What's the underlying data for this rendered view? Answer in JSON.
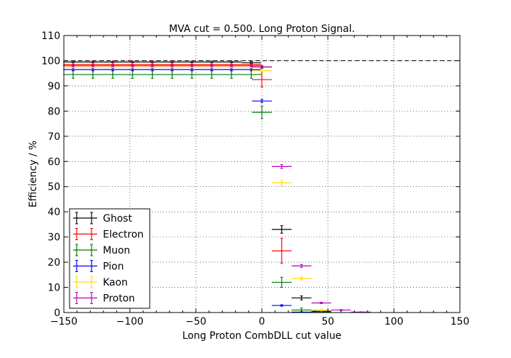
{
  "chart_data": {
    "type": "scatter",
    "title": "MVA cut = 0.500. Long Proton Signal.",
    "xlabel": "Long Proton CombDLL cut value",
    "ylabel": "Efficiency / %",
    "xlim": [
      -150,
      150
    ],
    "ylim": [
      0,
      110
    ],
    "xticks": [
      -150,
      -100,
      -50,
      0,
      50,
      100,
      150
    ],
    "yticks": [
      0,
      10,
      20,
      30,
      40,
      50,
      60,
      70,
      80,
      90,
      100,
      110
    ],
    "xtick_labels": [
      "−150",
      "−100",
      "−50",
      "0",
      "50",
      "100",
      "150"
    ],
    "ytick_labels": [
      "0",
      "10",
      "20",
      "30",
      "40",
      "50",
      "60",
      "70",
      "80",
      "90",
      "100",
      "110"
    ],
    "grid": true,
    "reference_line_y": 100,
    "legend_position": "lower-left",
    "series": [
      {
        "name": "Ghost",
        "color": "#000000",
        "points": [
          {
            "x": -143,
            "y": 99.5,
            "xerr": 7.5,
            "yerr": 0.3
          },
          {
            "x": -128,
            "y": 99.5,
            "xerr": 7.5,
            "yerr": 0.3
          },
          {
            "x": -113,
            "y": 99.5,
            "xerr": 7.5,
            "yerr": 0.3
          },
          {
            "x": -98,
            "y": 99.5,
            "xerr": 7.5,
            "yerr": 0.3
          },
          {
            "x": -83,
            "y": 99.5,
            "xerr": 7.5,
            "yerr": 0.3
          },
          {
            "x": -68,
            "y": 99.5,
            "xerr": 7.5,
            "yerr": 0.3
          },
          {
            "x": -53,
            "y": 99.5,
            "xerr": 7.5,
            "yerr": 0.3
          },
          {
            "x": -38,
            "y": 99.5,
            "xerr": 7.5,
            "yerr": 0.3
          },
          {
            "x": -23,
            "y": 99.5,
            "xerr": 7.5,
            "yerr": 0.3
          },
          {
            "x": -8,
            "y": 99.2,
            "xerr": 7.5,
            "yerr": 0.3
          },
          {
            "x": 0,
            "y": 97.5,
            "xerr": 7.5,
            "yerr": 0.5
          },
          {
            "x": 15,
            "y": 33.0,
            "xerr": 7.5,
            "yerr": 1.5
          },
          {
            "x": 30,
            "y": 5.8,
            "xerr": 7.5,
            "yerr": 0.8
          },
          {
            "x": 45,
            "y": 0.5,
            "xerr": 7.5,
            "yerr": 0.3
          },
          {
            "x": 75,
            "y": 0.1,
            "xerr": 7.5,
            "yerr": 0.1
          }
        ]
      },
      {
        "name": "Electron",
        "color": "#ff0000",
        "points": [
          {
            "x": -143,
            "y": 98.5,
            "xerr": 7.5,
            "yerr": 1.2
          },
          {
            "x": -128,
            "y": 98.5,
            "xerr": 7.5,
            "yerr": 1.2
          },
          {
            "x": -113,
            "y": 98.5,
            "xerr": 7.5,
            "yerr": 1.2
          },
          {
            "x": -98,
            "y": 98.5,
            "xerr": 7.5,
            "yerr": 1.2
          },
          {
            "x": -83,
            "y": 98.5,
            "xerr": 7.5,
            "yerr": 1.2
          },
          {
            "x": -68,
            "y": 98.5,
            "xerr": 7.5,
            "yerr": 1.2
          },
          {
            "x": -53,
            "y": 98.5,
            "xerr": 7.5,
            "yerr": 1.2
          },
          {
            "x": -38,
            "y": 98.5,
            "xerr": 7.5,
            "yerr": 1.2
          },
          {
            "x": -23,
            "y": 98.5,
            "xerr": 7.5,
            "yerr": 1.2
          },
          {
            "x": -8,
            "y": 98.5,
            "xerr": 7.5,
            "yerr": 1.2
          },
          {
            "x": 0,
            "y": 92.5,
            "xerr": 7.5,
            "yerr": 3.0
          },
          {
            "x": 15,
            "y": 24.5,
            "xerr": 7.5,
            "yerr": 5.0
          },
          {
            "x": 75,
            "y": 0.1,
            "xerr": 7.5,
            "yerr": 0.1
          }
        ]
      },
      {
        "name": "Muon",
        "color": "#007700",
        "points": [
          {
            "x": -143,
            "y": 94.5,
            "xerr": 7.5,
            "yerr": 1.5
          },
          {
            "x": -128,
            "y": 94.5,
            "xerr": 7.5,
            "yerr": 1.5
          },
          {
            "x": -113,
            "y": 94.5,
            "xerr": 7.5,
            "yerr": 1.5
          },
          {
            "x": -98,
            "y": 94.5,
            "xerr": 7.5,
            "yerr": 1.5
          },
          {
            "x": -83,
            "y": 94.5,
            "xerr": 7.5,
            "yerr": 1.5
          },
          {
            "x": -68,
            "y": 94.5,
            "xerr": 7.5,
            "yerr": 1.5
          },
          {
            "x": -53,
            "y": 94.5,
            "xerr": 7.5,
            "yerr": 1.5
          },
          {
            "x": -38,
            "y": 94.5,
            "xerr": 7.5,
            "yerr": 1.5
          },
          {
            "x": -23,
            "y": 94.5,
            "xerr": 7.5,
            "yerr": 1.5
          },
          {
            "x": -8,
            "y": 94.5,
            "xerr": 7.5,
            "yerr": 1.5
          },
          {
            "x": 0,
            "y": 79.5,
            "xerr": 7.5,
            "yerr": 2.5
          },
          {
            "x": 15,
            "y": 12.0,
            "xerr": 7.5,
            "yerr": 2.0
          },
          {
            "x": 30,
            "y": 1.0,
            "xerr": 7.5,
            "yerr": 0.8
          },
          {
            "x": 45,
            "y": 0.2,
            "xerr": 7.5,
            "yerr": 0.2
          }
        ]
      },
      {
        "name": "Pion",
        "color": "#0000ff",
        "points": [
          {
            "x": -143,
            "y": 96.5,
            "xerr": 7.5,
            "yerr": 0.5
          },
          {
            "x": -128,
            "y": 96.5,
            "xerr": 7.5,
            "yerr": 0.5
          },
          {
            "x": -113,
            "y": 96.5,
            "xerr": 7.5,
            "yerr": 0.5
          },
          {
            "x": -98,
            "y": 96.5,
            "xerr": 7.5,
            "yerr": 0.5
          },
          {
            "x": -83,
            "y": 96.5,
            "xerr": 7.5,
            "yerr": 0.5
          },
          {
            "x": -68,
            "y": 96.5,
            "xerr": 7.5,
            "yerr": 0.5
          },
          {
            "x": -53,
            "y": 96.5,
            "xerr": 7.5,
            "yerr": 0.5
          },
          {
            "x": -38,
            "y": 96.5,
            "xerr": 7.5,
            "yerr": 0.5
          },
          {
            "x": -23,
            "y": 96.5,
            "xerr": 7.5,
            "yerr": 0.5
          },
          {
            "x": -8,
            "y": 96.5,
            "xerr": 7.5,
            "yerr": 0.5
          },
          {
            "x": 0,
            "y": 84.0,
            "xerr": 7.5,
            "yerr": 0.6
          },
          {
            "x": 15,
            "y": 2.8,
            "xerr": 7.5,
            "yerr": 0.3
          },
          {
            "x": 30,
            "y": 0.2,
            "xerr": 7.5,
            "yerr": 0.1
          }
        ]
      },
      {
        "name": "Kaon",
        "color": "#ffdd00",
        "points": [
          {
            "x": -143,
            "y": 97.5,
            "xerr": 7.5,
            "yerr": 0.4
          },
          {
            "x": -128,
            "y": 97.5,
            "xerr": 7.5,
            "yerr": 0.4
          },
          {
            "x": -113,
            "y": 97.5,
            "xerr": 7.5,
            "yerr": 0.4
          },
          {
            "x": -98,
            "y": 97.5,
            "xerr": 7.5,
            "yerr": 0.4
          },
          {
            "x": -83,
            "y": 97.5,
            "xerr": 7.5,
            "yerr": 0.4
          },
          {
            "x": -68,
            "y": 97.5,
            "xerr": 7.5,
            "yerr": 0.4
          },
          {
            "x": -53,
            "y": 97.5,
            "xerr": 7.5,
            "yerr": 0.4
          },
          {
            "x": -38,
            "y": 97.5,
            "xerr": 7.5,
            "yerr": 0.4
          },
          {
            "x": -23,
            "y": 97.5,
            "xerr": 7.5,
            "yerr": 0.4
          },
          {
            "x": -8,
            "y": 97.5,
            "xerr": 7.5,
            "yerr": 0.4
          },
          {
            "x": 0,
            "y": 96.0,
            "xerr": 7.5,
            "yerr": 0.5
          },
          {
            "x": 15,
            "y": 51.5,
            "xerr": 7.5,
            "yerr": 1.0
          },
          {
            "x": 30,
            "y": 13.5,
            "xerr": 7.5,
            "yerr": 0.6
          },
          {
            "x": 45,
            "y": 1.0,
            "xerr": 7.5,
            "yerr": 0.3
          },
          {
            "x": 75,
            "y": 0.1,
            "xerr": 7.5,
            "yerr": 0.1
          }
        ]
      },
      {
        "name": "Proton",
        "color": "#bb00bb",
        "points": [
          {
            "x": -143,
            "y": 98.0,
            "xerr": 7.5,
            "yerr": 0.3
          },
          {
            "x": -128,
            "y": 98.0,
            "xerr": 7.5,
            "yerr": 0.3
          },
          {
            "x": -113,
            "y": 98.0,
            "xerr": 7.5,
            "yerr": 0.3
          },
          {
            "x": -98,
            "y": 98.0,
            "xerr": 7.5,
            "yerr": 0.3
          },
          {
            "x": -83,
            "y": 98.0,
            "xerr": 7.5,
            "yerr": 0.3
          },
          {
            "x": -68,
            "y": 98.0,
            "xerr": 7.5,
            "yerr": 0.3
          },
          {
            "x": -53,
            "y": 98.0,
            "xerr": 7.5,
            "yerr": 0.3
          },
          {
            "x": -38,
            "y": 98.0,
            "xerr": 7.5,
            "yerr": 0.3
          },
          {
            "x": -23,
            "y": 98.0,
            "xerr": 7.5,
            "yerr": 0.3
          },
          {
            "x": -8,
            "y": 98.0,
            "xerr": 7.5,
            "yerr": 0.3
          },
          {
            "x": 0,
            "y": 97.5,
            "xerr": 7.5,
            "yerr": 0.3
          },
          {
            "x": 15,
            "y": 58.0,
            "xerr": 7.5,
            "yerr": 0.8
          },
          {
            "x": 30,
            "y": 18.5,
            "xerr": 7.5,
            "yerr": 0.6
          },
          {
            "x": 45,
            "y": 3.8,
            "xerr": 7.5,
            "yerr": 0.3
          },
          {
            "x": 60,
            "y": 1.0,
            "xerr": 7.5,
            "yerr": 0.2
          },
          {
            "x": 75,
            "y": 0.2,
            "xerr": 7.5,
            "yerr": 0.1
          }
        ]
      }
    ]
  }
}
